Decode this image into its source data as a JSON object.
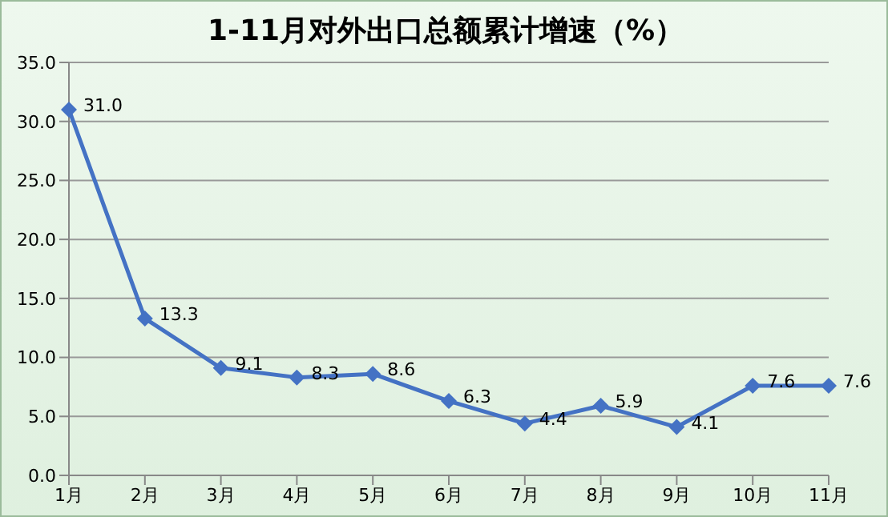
{
  "chart_data": {
    "type": "line",
    "title": "1-11月对外出口总额累计增速（%）",
    "categories": [
      "1月",
      "2月",
      "3月",
      "4月",
      "5月",
      "6月",
      "7月",
      "8月",
      "9月",
      "10月",
      "11月"
    ],
    "series": [
      {
        "color": "#4472c4",
        "values": [
          31.0,
          13.3,
          9.1,
          8.3,
          8.6,
          6.3,
          4.4,
          5.9,
          4.1,
          7.6,
          7.6
        ],
        "value_labels": [
          "31.0",
          "13.3",
          "9.1",
          "8.3",
          "8.6",
          "6.3",
          "4.4",
          "5.9",
          "4.1",
          "7.6",
          "7.6"
        ]
      }
    ],
    "ylim": [
      0,
      35
    ],
    "yticks": [
      {
        "value": 0,
        "label": "0.0"
      },
      {
        "value": 5,
        "label": "5.0"
      },
      {
        "value": 10,
        "label": "10.0"
      },
      {
        "value": 15,
        "label": "15.0"
      },
      {
        "value": 20,
        "label": "20.0"
      },
      {
        "value": 25,
        "label": "25.0"
      },
      {
        "value": 30,
        "label": "30.0"
      },
      {
        "value": 35,
        "label": "35.0"
      }
    ],
    "grid": "y",
    "marker": "diamond",
    "line_style": "solid",
    "legend": false
  }
}
